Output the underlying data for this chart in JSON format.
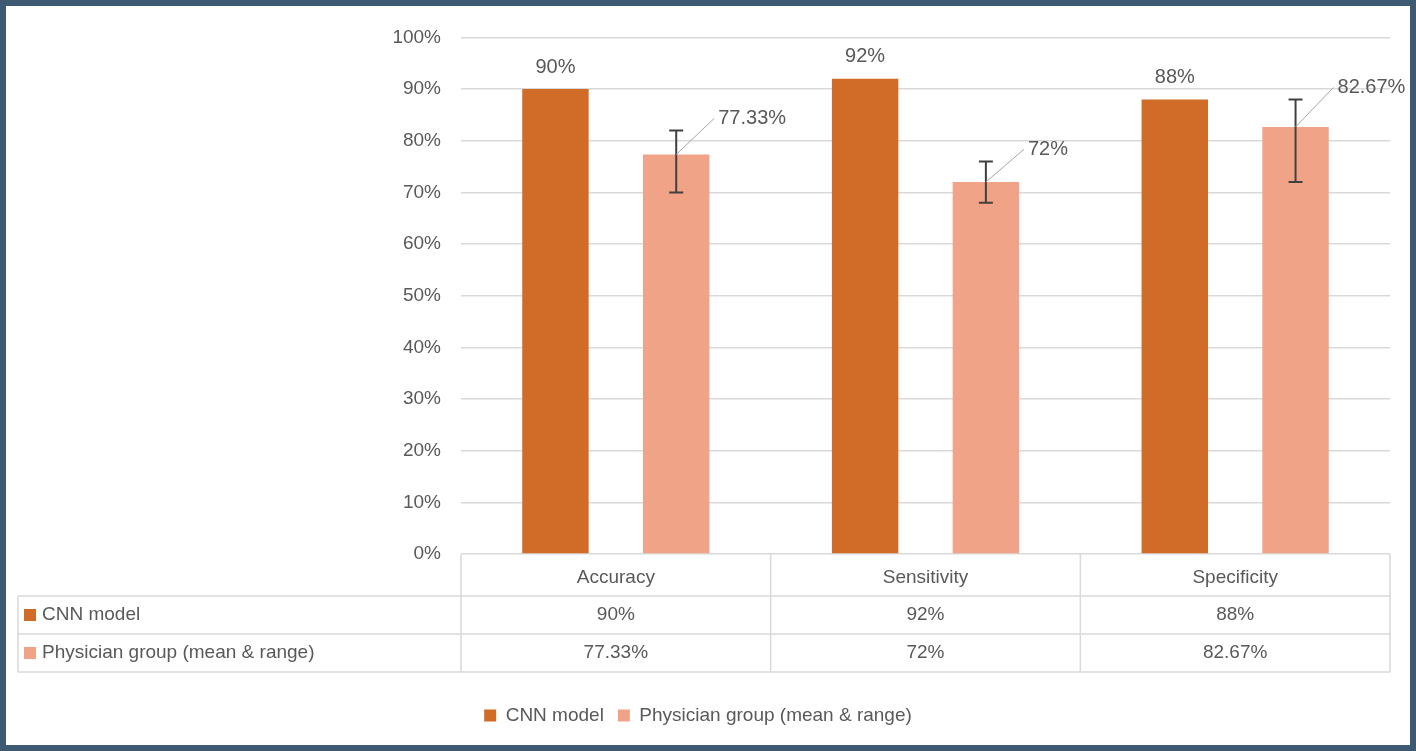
{
  "chart_data": {
    "type": "bar",
    "categories": [
      "Accuracy",
      "Sensitivity",
      "Specificity"
    ],
    "series": [
      {
        "name": "CNN model",
        "color": "#d06b28",
        "values": [
          90,
          92,
          88
        ],
        "value_labels": [
          "90%",
          "92%",
          "88%"
        ]
      },
      {
        "name": "Physician group (mean & range)",
        "color": "#f0a386",
        "values": [
          77.33,
          72,
          82.67
        ],
        "value_labels": [
          "77.33%",
          "72%",
          "82.67%"
        ],
        "errors": [
          [
            70,
            82
          ],
          [
            68,
            76
          ],
          [
            72,
            88
          ]
        ]
      }
    ],
    "ylim": [
      0,
      100
    ],
    "yticks": [
      {
        "value": 0,
        "label": "0%"
      },
      {
        "value": 10,
        "label": "10%"
      },
      {
        "value": 20,
        "label": "20%"
      },
      {
        "value": 30,
        "label": "30%"
      },
      {
        "value": 40,
        "label": "40%"
      },
      {
        "value": 50,
        "label": "50%"
      },
      {
        "value": 60,
        "label": "60%"
      },
      {
        "value": 70,
        "label": "70%"
      },
      {
        "value": 80,
        "label": "80%"
      },
      {
        "value": 90,
        "label": "90%"
      },
      {
        "value": 100,
        "label": "100%"
      }
    ],
    "grid": "y",
    "legend": "bottom",
    "data_labels": true
  }
}
